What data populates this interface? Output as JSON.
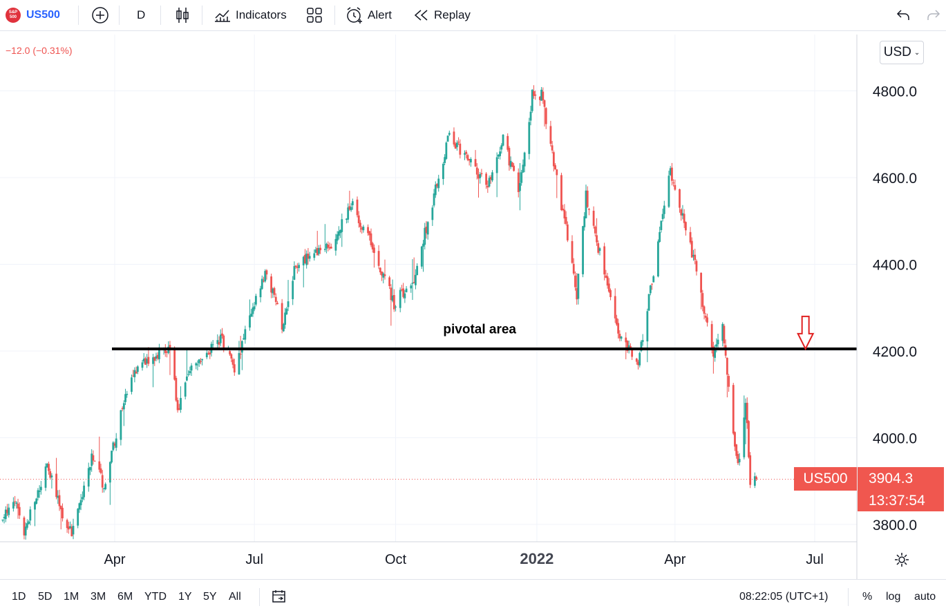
{
  "toolbar": {
    "symbol": "US500",
    "logo_text": "S&P 500",
    "interval": "D",
    "indicators_label": "Indicators",
    "alert_label": "Alert",
    "replay_label": "Replay"
  },
  "header": {
    "change": "−12.0 (−0.31%)",
    "currency": "USD"
  },
  "price_tag": {
    "symbol": "US500",
    "price": "3904.3",
    "countdown": "13:37:54"
  },
  "bottom_bar": {
    "ranges": [
      "1D",
      "5D",
      "1M",
      "3M",
      "6M",
      "YTD",
      "1Y",
      "5Y",
      "All"
    ],
    "time": "08:22:05 (UTC+1)",
    "percent": "%",
    "log": "log",
    "auto": "auto"
  },
  "colors": {
    "up": "#26a69a",
    "down": "#ef5350",
    "accent": "#2962ff"
  },
  "chart_data": {
    "type": "candlestick",
    "symbol": "US500",
    "interval": "D",
    "ylim": [
      3760,
      4930
    ],
    "y_ticks": [
      3800,
      4000,
      4200,
      4400,
      4600,
      4800
    ],
    "y_tick_labels": [
      "3800.0",
      "4000.0",
      "4200.0",
      "4400.0",
      "4600.0",
      "4800.0"
    ],
    "x_ticks": [
      {
        "label": "Apr",
        "date": "2021-04-01",
        "bold": false
      },
      {
        "label": "Jul",
        "date": "2021-07-01",
        "bold": false
      },
      {
        "label": "Oct",
        "date": "2021-10-01",
        "bold": false
      },
      {
        "label": "2022",
        "date": "2022-01-01",
        "bold": true
      },
      {
        "label": "Apr",
        "date": "2022-04-01",
        "bold": false
      },
      {
        "label": "Jul",
        "date": "2022-07-01",
        "bold": false
      }
    ],
    "close_path": [
      [
        "2021-01-04",
        3720
      ],
      [
        "2021-01-12",
        3800
      ],
      [
        "2021-01-26",
        3850
      ],
      [
        "2021-02-01",
        3780
      ],
      [
        "2021-02-16",
        3935
      ],
      [
        "2021-02-26",
        3820
      ],
      [
        "2021-03-04",
        3780
      ],
      [
        "2021-03-17",
        3950
      ],
      [
        "2021-03-25",
        3890
      ],
      [
        "2021-04-06",
        4070
      ],
      [
        "2021-04-16",
        4170
      ],
      [
        "2021-05-07",
        4210
      ],
      [
        "2021-05-12",
        4060
      ],
      [
        "2021-05-20",
        4150
      ],
      [
        "2021-06-10",
        4230
      ],
      [
        "2021-06-18",
        4160
      ],
      [
        "2021-07-01",
        4310
      ],
      [
        "2021-07-09",
        4380
      ],
      [
        "2021-07-19",
        4260
      ],
      [
        "2021-07-28",
        4400
      ],
      [
        "2021-08-20",
        4440
      ],
      [
        "2021-09-02",
        4540
      ],
      [
        "2021-09-15",
        4450
      ],
      [
        "2021-09-30",
        4310
      ],
      [
        "2021-10-13",
        4370
      ],
      [
        "2021-10-29",
        4600
      ],
      [
        "2021-11-05",
        4700
      ],
      [
        "2021-11-30",
        4580
      ],
      [
        "2021-12-10",
        4690
      ],
      [
        "2021-12-20",
        4570
      ],
      [
        "2021-12-29",
        4790
      ],
      [
        "2022-01-04",
        4790
      ],
      [
        "2022-01-20",
        4480
      ],
      [
        "2022-01-27",
        4330
      ],
      [
        "2022-02-02",
        4560
      ],
      [
        "2022-02-24",
        4230
      ],
      [
        "2022-03-08",
        4170
      ],
      [
        "2022-03-29",
        4620
      ],
      [
        "2022-04-14",
        4400
      ],
      [
        "2022-04-26",
        4180
      ],
      [
        "2022-05-02",
        4270
      ],
      [
        "2022-05-09",
        4000
      ],
      [
        "2022-05-12",
        3930
      ],
      [
        "2022-05-17",
        4090
      ],
      [
        "2022-05-20",
        3900
      ],
      [
        "2022-05-24",
        3904.3
      ]
    ],
    "annotations": [
      {
        "type": "horizontal_line",
        "value": 4205,
        "from": "2021-04-01",
        "to": "2022-07-31"
      },
      {
        "type": "text",
        "text": "pivotal area",
        "date": "2021-11-01",
        "value": 4250
      },
      {
        "type": "arrow_down",
        "date": "2022-06-25",
        "value": 4205
      }
    ],
    "last_price": 3904.3
  }
}
